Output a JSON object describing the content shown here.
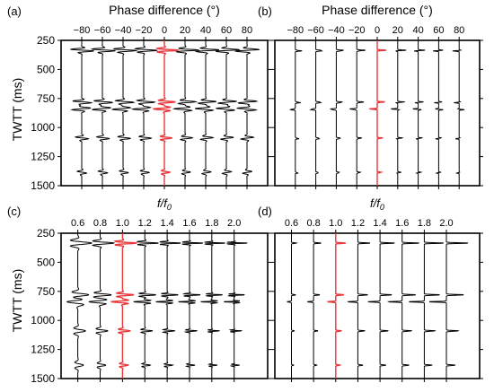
{
  "figure": {
    "panel_letters": [
      "(a)",
      "(b)",
      "(c)",
      "(d)"
    ],
    "shared_ylabel": "TWTT (ms)",
    "top_xlabel": "Phase difference (°)",
    "bottom_xlabel_f": "f",
    "bottom_xlabel_slash": "/",
    "bottom_xlabel_f0": "f",
    "bottom_xlabel_sub": "0"
  },
  "colors": {
    "trace": "#000000",
    "reference_trace": "#e8383b",
    "frame": "#000000"
  },
  "chart_data": [
    {
      "panel": "(a)",
      "type": "line",
      "xlabel": "Phase difference (°)",
      "ylabel": "TWTT (ms)",
      "x_ticks": [
        -80,
        -60,
        -40,
        -20,
        0,
        20,
        40,
        60,
        80
      ],
      "x_tick_labels": [
        "−80",
        "−60",
        "−40",
        "−20",
        "0",
        "20",
        "40",
        "60",
        "80"
      ],
      "xlim": [
        -100,
        100
      ],
      "y_ticks": [
        250,
        500,
        750,
        1000,
        1250,
        1500
      ],
      "ylim": [
        250,
        1500
      ],
      "trace_positions": [
        -80,
        -60,
        -40,
        -20,
        0,
        20,
        40,
        60,
        80
      ],
      "highlight_trace": 0,
      "reflector_times_ms": [
        335,
        780,
        840,
        1090,
        1385
      ],
      "reflector_amplitudes": [
        1.0,
        0.8,
        -0.8,
        0.55,
        0.4
      ],
      "trace_style": "wavelet"
    },
    {
      "panel": "(b)",
      "type": "line",
      "xlabel": "Phase difference (°)",
      "ylabel": "",
      "x_ticks": [
        -80,
        -60,
        -40,
        -20,
        0,
        20,
        40,
        60,
        80
      ],
      "x_tick_labels": [
        "−80",
        "−60",
        "−40",
        "−20",
        "0",
        "20",
        "40",
        "60",
        "80"
      ],
      "xlim": [
        -100,
        100
      ],
      "y_ticks": [
        250,
        500,
        750,
        1000,
        1250,
        1500
      ],
      "ylim": [
        250,
        1500
      ],
      "trace_positions": [
        -80,
        -60,
        -40,
        -20,
        0,
        20,
        40,
        60,
        80
      ],
      "highlight_trace": 0,
      "reflector_times_ms": [
        335,
        780,
        840,
        1090,
        1385
      ],
      "reflector_amplitudes": [
        1.0,
        0.8,
        -0.8,
        0.55,
        0.4
      ],
      "trace_style": "spike"
    },
    {
      "panel": "(c)",
      "type": "line",
      "xlabel": "f/f0",
      "ylabel": "TWTT (ms)",
      "x_ticks": [
        0.6,
        0.8,
        1.0,
        1.2,
        1.4,
        1.6,
        1.8,
        2.0
      ],
      "x_tick_labels": [
        "0.6",
        "0.8",
        "1.0",
        "1.2",
        "1.4",
        "1.6",
        "1.8",
        "2.0"
      ],
      "xlim": [
        0.45,
        2.3
      ],
      "y_ticks": [
        250,
        500,
        750,
        1000,
        1250,
        1500
      ],
      "ylim": [
        250,
        1500
      ],
      "trace_positions": [
        0.6,
        0.8,
        1.0,
        1.2,
        1.4,
        1.6,
        1.8,
        2.0
      ],
      "highlight_trace": 1.0,
      "reflector_times_ms": [
        335,
        780,
        840,
        1090,
        1385
      ],
      "reflector_amplitudes": [
        1.0,
        0.8,
        -0.8,
        0.55,
        0.4
      ],
      "trace_style": "wavelet-scaled"
    },
    {
      "panel": "(d)",
      "type": "line",
      "xlabel": "f/f0",
      "ylabel": "",
      "x_ticks": [
        0.6,
        0.8,
        1.0,
        1.2,
        1.4,
        1.6,
        1.8,
        2.0
      ],
      "x_tick_labels": [
        "0.6",
        "0.8",
        "1.0",
        "1.2",
        "1.4",
        "1.6",
        "1.8",
        "2.0"
      ],
      "xlim": [
        0.45,
        2.3
      ],
      "y_ticks": [
        250,
        500,
        750,
        1000,
        1250,
        1500
      ],
      "ylim": [
        250,
        1500
      ],
      "trace_positions": [
        0.6,
        0.8,
        1.0,
        1.2,
        1.4,
        1.6,
        1.8,
        2.0
      ],
      "highlight_trace": 1.0,
      "reflector_times_ms": [
        335,
        780,
        840,
        1090,
        1385
      ],
      "reflector_amplitudes": [
        1.0,
        0.8,
        -0.8,
        0.55,
        0.4
      ],
      "trace_style": "spike-scaled"
    }
  ]
}
